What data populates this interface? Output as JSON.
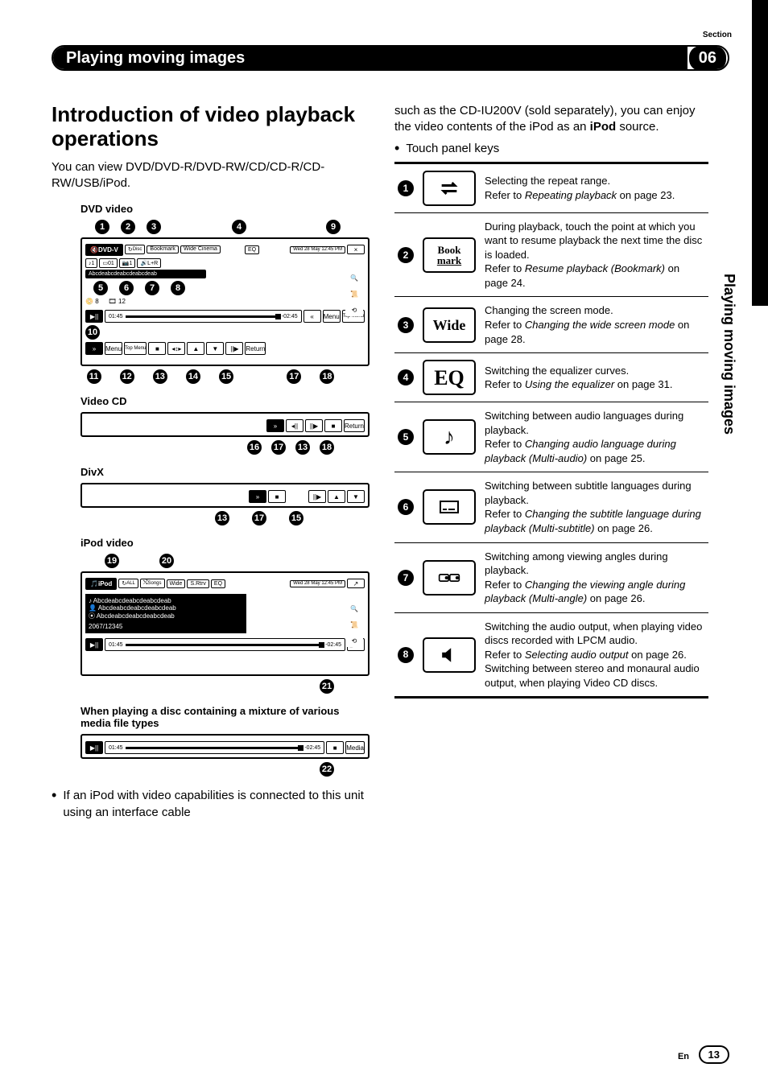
{
  "section_label": "Section",
  "chapter_number": "06",
  "header_title": "Playing moving images",
  "vertical_label": "Playing moving images",
  "page_lang": "En",
  "page_number": "13",
  "intro": {
    "heading": "Introduction of video playback operations",
    "body": "You can view DVD/DVD-R/DVD-RW/CD/CD-R/CD-RW/USB/iPod."
  },
  "diagrams": {
    "dvd_label": "DVD video",
    "videocd_label": "Video CD",
    "divx_label": "DivX",
    "ipod_label": "iPod video",
    "mixture_label": "When playing a disc containing a mixture of various media file types"
  },
  "dvd_screen": {
    "sourcetag": "DVD-V",
    "chips": [
      "Disc",
      "Book mark",
      "Wide Cinema",
      "EQ"
    ],
    "datetime": "Wed 28 May 12:45 PM",
    "row2": [
      "1",
      "01",
      "1",
      "L+R"
    ],
    "row3_text": "Abcdeabcdeabcdeabcdeab",
    "statusleft": "8",
    "statusright": "12",
    "time_elapsed": "01:45",
    "time_remain": "-02:45",
    "right_menu": "Menu",
    "right_topmenu": "Top Menu",
    "bottom": {
      "menu": "Menu",
      "topmenu": "Top Menu",
      "return": "Return"
    },
    "callouts_top": [
      "1",
      "2",
      "3",
      "4",
      "9"
    ],
    "callouts_mid": [
      "5",
      "6",
      "7",
      "8"
    ],
    "callouts_time": [
      "10"
    ],
    "callouts_bot": [
      "11",
      "12",
      "13",
      "14",
      "15",
      "17",
      "18"
    ]
  },
  "videocd_screen": {
    "return": "Return",
    "callouts": [
      "16",
      "17",
      "13",
      "18"
    ]
  },
  "divx_screen": {
    "callouts": [
      "13",
      "17",
      "15"
    ]
  },
  "ipod_screen": {
    "sourcetag": "iPod",
    "chips": [
      "ALL",
      "Songs",
      "Wide",
      "S.Rtrv",
      "EQ"
    ],
    "datetime": "Wed 28 May 12:45 PM",
    "line1": "Abcdeabcdeabcdeabcdeab",
    "line2": "Abcdeabcdeabcdeabcdeab",
    "line3": "Abcdeabcdeabcdeabcdeab",
    "counter": "2067/12345",
    "time_elapsed": "01:45",
    "time_remain": "-02:45",
    "app": "App",
    "callouts_top": [
      "19",
      "20"
    ],
    "callouts_bot": [
      "21"
    ]
  },
  "mixture_screen": {
    "time_elapsed": "01:45",
    "time_remain": "-02:45",
    "media": "Media",
    "callouts": [
      "22"
    ]
  },
  "left_note": "If an iPod with video capabilities is connected to this unit using an interface cable",
  "right_intro_a": "such as the CD-IU200V (sold separately), you can enjoy the video contents of the iPod as an ",
  "right_intro_b": "iPod",
  "right_intro_c": " source.",
  "right_bullet": "Touch panel keys",
  "keys": [
    {
      "n": "1",
      "icon": "repeat",
      "text": "Selecting the repeat range.",
      "ref": "Repeating playback",
      "pg": "on page 23."
    },
    {
      "n": "2",
      "icon": "bookmark",
      "text": "During playback, touch the point at which you want to resume playback the next time the disc is loaded.",
      "ref": "Resume playback (Bookmark)",
      "pg": "on page 24."
    },
    {
      "n": "3",
      "icon": "wide",
      "text": "Changing the screen mode.",
      "ref": "Changing the wide screen mode",
      "pg": "on page 28."
    },
    {
      "n": "4",
      "icon": "eq",
      "text": "Switching the equalizer curves.",
      "ref": "Using the equalizer",
      "pg": "on page 31."
    },
    {
      "n": "5",
      "icon": "audio",
      "text": "Switching between audio languages during playback.",
      "ref": "Changing audio language during playback (Multi-audio)",
      "pg": "on page 25."
    },
    {
      "n": "6",
      "icon": "subtitle",
      "text": "Switching between subtitle languages during playback.",
      "ref": "Changing the subtitle language during playback (Multi-subtitle)",
      "pg": "on page 26."
    },
    {
      "n": "7",
      "icon": "angle",
      "text": "Switching among viewing angles during playback.",
      "ref": "Changing the viewing angle during playback (Multi-angle)",
      "pg": "on page 26."
    },
    {
      "n": "8",
      "icon": "speaker",
      "text": "Switching the audio output, when playing video discs recorded with LPCM audio.",
      "ref": "Selecting audio output",
      "pg": "on page 26.",
      "extra": "Switching between stereo and monaural audio output, when playing Video CD discs."
    }
  ],
  "labels": {
    "disc": "Disc",
    "bookmark_top": "Book",
    "bookmark_bot": "mark",
    "wide": "Wide",
    "eq": "EQ",
    "referto": "Refer to "
  }
}
